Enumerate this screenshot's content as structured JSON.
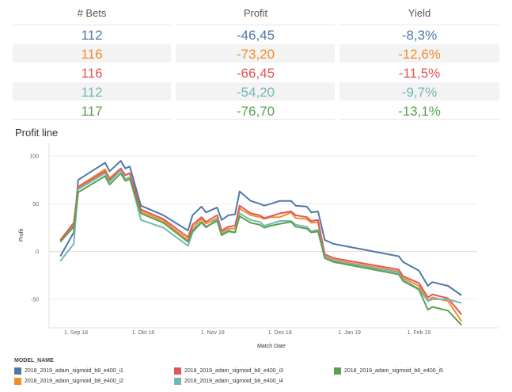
{
  "table": {
    "headers": [
      "# Bets",
      "Profit",
      "Yield"
    ],
    "rows": [
      {
        "bets": "112",
        "profit": "-46,45",
        "yield": "-8,3%",
        "color": "#4e79a7"
      },
      {
        "bets": "116",
        "profit": "-73,20",
        "yield": "-12,6%",
        "color": "#f28e2b"
      },
      {
        "bets": "116",
        "profit": "-66,45",
        "yield": "-11,5%",
        "color": "#e15759"
      },
      {
        "bets": "112",
        "profit": "-54,20",
        "yield": "-9,7%",
        "color": "#76b7b2"
      },
      {
        "bets": "117",
        "profit": "-76,70",
        "yield": "-13,1%",
        "color": "#59a14f"
      }
    ]
  },
  "chart_data": {
    "type": "line",
    "title": "Profit line",
    "xlabel": "Match Date",
    "ylabel": "Profit",
    "ylim": [
      -75,
      110
    ],
    "yticks": [
      100,
      50,
      0,
      -50
    ],
    "xlim": [
      "2018-08-20",
      "2019-02-27"
    ],
    "xticks": [
      {
        "label": "1. Sep 18",
        "date": "2018-09-01"
      },
      {
        "label": "1. Okt 18",
        "date": "2018-10-01"
      },
      {
        "label": "1. Nov 18",
        "date": "2018-11-01"
      },
      {
        "label": "1. Dez 18",
        "date": "2018-12-01"
      },
      {
        "label": "1. Jan 19",
        "date": "2019-01-01"
      },
      {
        "label": "1. Feb 19",
        "date": "2019-02-01"
      }
    ],
    "legend_title": "MODEL_NAME",
    "legend_position": "bottom",
    "x": [
      "2018-08-25",
      "2018-08-31",
      "2018-09-02",
      "2018-09-14",
      "2018-09-16",
      "2018-09-21",
      "2018-09-23",
      "2018-09-25",
      "2018-09-30",
      "2018-10-10",
      "2018-10-21",
      "2018-10-23",
      "2018-10-27",
      "2018-10-29",
      "2018-11-03",
      "2018-11-05",
      "2018-11-08",
      "2018-11-11",
      "2018-11-13",
      "2018-11-18",
      "2018-11-22",
      "2018-11-24",
      "2018-11-27",
      "2018-12-01",
      "2018-12-06",
      "2018-12-08",
      "2018-12-13",
      "2018-12-15",
      "2018-12-18",
      "2018-12-21",
      "2018-12-23",
      "2018-12-25",
      "2019-01-23",
      "2019-01-25",
      "2019-02-01",
      "2019-02-05",
      "2019-02-07",
      "2019-02-14",
      "2019-02-20"
    ],
    "grid": false,
    "series": [
      {
        "name": "2018_2019_adam_sigmoid_b8_e400_i1",
        "color": "#4e79a7",
        "values": [
          -5,
          20,
          75,
          93,
          84,
          95,
          87,
          89,
          48,
          38,
          22,
          38,
          47,
          41,
          46,
          33,
          38,
          39,
          63,
          53,
          50,
          48,
          50,
          53,
          53,
          48,
          47,
          41,
          42,
          12,
          10,
          8,
          -5,
          -11,
          -20,
          -36,
          -32,
          -36,
          -46
        ]
      },
      {
        "name": "2018_2019_adam_sigmoid_b8_e400_i2",
        "color": "#f28e2b",
        "values": [
          10,
          28,
          68,
          86,
          77,
          87,
          80,
          82,
          42,
          32,
          12,
          25,
          34,
          29,
          35,
          20,
          24,
          24,
          45,
          38,
          36,
          34,
          36,
          36,
          41,
          35,
          34,
          30,
          31,
          -5,
          -7,
          -9,
          -21,
          -28,
          -36,
          -51,
          -48,
          -52,
          -73
        ]
      },
      {
        "name": "2018_2019_adam_sigmoid_b8_e400_i3",
        "color": "#e15759",
        "values": [
          12,
          30,
          67,
          84,
          75,
          87,
          80,
          82,
          44,
          34,
          15,
          28,
          36,
          31,
          38,
          22,
          26,
          27,
          48,
          40,
          38,
          35,
          37,
          40,
          42,
          38,
          36,
          32,
          33,
          -3,
          -5,
          -7,
          -19,
          -26,
          -33,
          -48,
          -45,
          -49,
          -66
        ]
      },
      {
        "name": "2018_2019_adam_sigmoid_b8_e400_i4",
        "color": "#76b7b2",
        "values": [
          -10,
          8,
          65,
          82,
          73,
          85,
          76,
          78,
          33,
          25,
          6,
          20,
          30,
          25,
          34,
          18,
          22,
          20,
          40,
          33,
          31,
          27,
          29,
          32,
          32,
          28,
          26,
          21,
          23,
          -6,
          -8,
          -10,
          -22,
          -30,
          -39,
          -52,
          -50,
          -50,
          -54
        ]
      },
      {
        "name": "2018_2019_adam_sigmoid_b8_e400_i5",
        "color": "#59a14f",
        "values": [
          10,
          26,
          62,
          79,
          70,
          82,
          74,
          76,
          40,
          30,
          10,
          22,
          31,
          26,
          32,
          17,
          21,
          20,
          37,
          30,
          28,
          25,
          27,
          29,
          31,
          26,
          24,
          20,
          21,
          -7,
          -9,
          -11,
          -24,
          -31,
          -40,
          -61,
          -58,
          -62,
          -77
        ]
      }
    ]
  }
}
